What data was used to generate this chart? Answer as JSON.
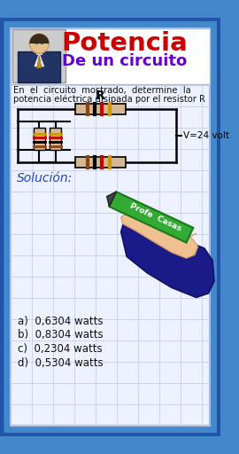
{
  "title1": "Potencia",
  "title2": "De un circuito",
  "title1_color": "#cc0000",
  "title2_color": "#6600cc",
  "problem_text": "En  el  circuito  mostrado,  determine  la\npotenciá eléctrica disipada por el resistor R",
  "solucion_text": "Solución:",
  "voltage_text": "V=24 volt",
  "resistor_label": "R",
  "options": [
    "a)  0,6304 watts",
    "b)  0,8304 watts",
    "c)  0,2304 watts",
    "d)  0,5304 watts"
  ],
  "bg_color": "#4488cc",
  "inner_bg": "#eef2ff",
  "grid_color": "#c8d0e8",
  "outer_border": "#2255aa",
  "profe_text": "Profe  Casas",
  "profe_bg": "#33aa33"
}
